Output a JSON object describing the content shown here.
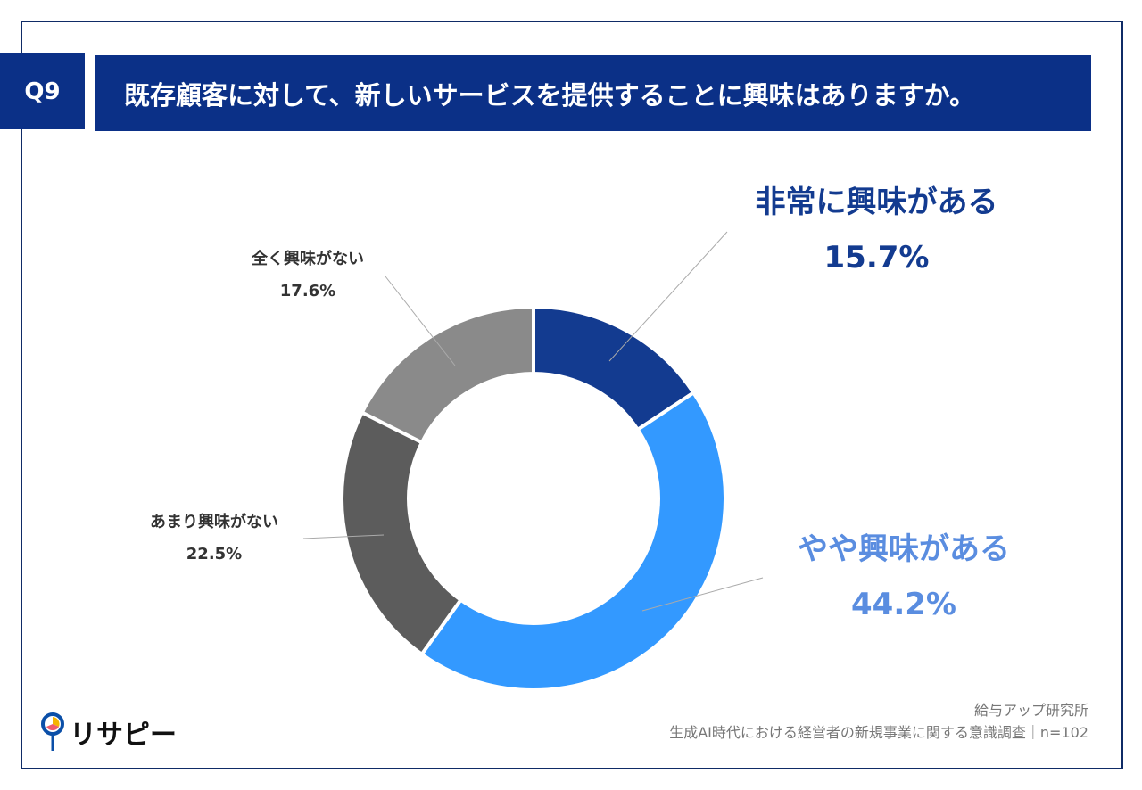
{
  "header": {
    "q_label": "Q9",
    "title": "既存顧客に対して、新しいサービスを提供することに興味はありますか。"
  },
  "chart_data": {
    "type": "pie",
    "donut": true,
    "title": "既存顧客に対して、新しいサービスを提供することに興味はありますか。",
    "slices": [
      {
        "label": "非常に興味がある",
        "value": 15.7,
        "display": "15.7%",
        "color": "#133b90"
      },
      {
        "label": "やや興味がある",
        "value": 44.2,
        "display": "44.2%",
        "color": "#3399ff"
      },
      {
        "label": "あまり興味がない",
        "value": 22.5,
        "display": "22.5%",
        "color": "#5c5c5c"
      },
      {
        "label": "全く興味がない",
        "value": 17.6,
        "display": "17.6%",
        "color": "#8a8a8a"
      }
    ]
  },
  "footer": {
    "source_org": "給与アップ研究所",
    "survey": "生成AI時代における経営者の新規事業に関する意識調査｜n=102",
    "logo_text": "リサピー"
  }
}
